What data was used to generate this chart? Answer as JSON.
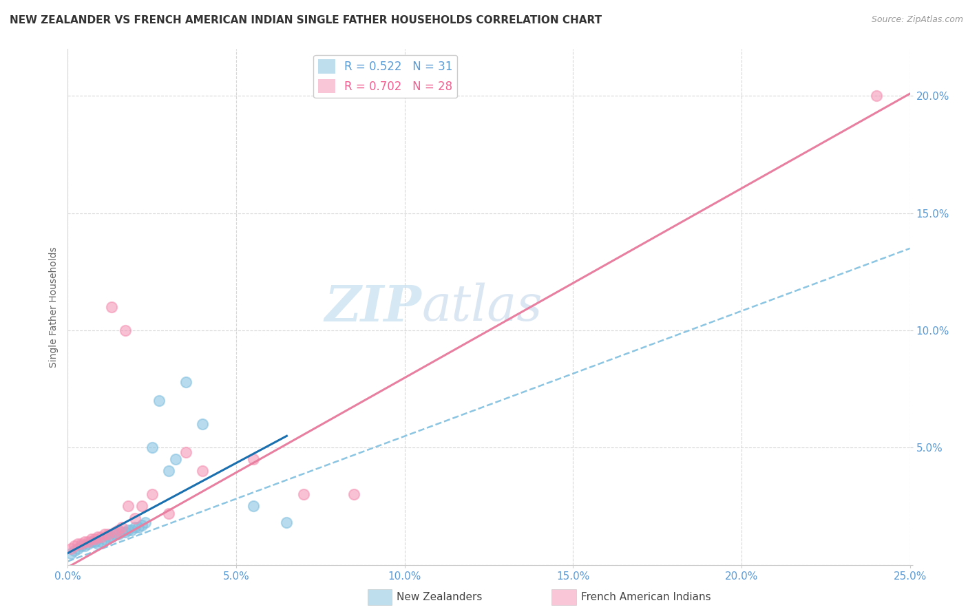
{
  "title": "NEW ZEALANDER VS FRENCH AMERICAN INDIAN SINGLE FATHER HOUSEHOLDS CORRELATION CHART",
  "source": "Source: ZipAtlas.com",
  "ylabel": "Single Father Households",
  "xlim": [
    0.0,
    0.25
  ],
  "ylim": [
    0.0,
    0.22
  ],
  "xticks": [
    0.0,
    0.05,
    0.1,
    0.15,
    0.2,
    0.25
  ],
  "xtick_labels": [
    "0.0%",
    "5.0%",
    "10.0%",
    "15.0%",
    "20.0%",
    "25.0%"
  ],
  "yticks": [
    0.0,
    0.05,
    0.1,
    0.15,
    0.2
  ],
  "ytick_labels": [
    "",
    "5.0%",
    "10.0%",
    "15.0%",
    "20.0%"
  ],
  "nz_color": "#7fbfdf",
  "fai_color": "#f48fb1",
  "nz_line_color": "#7fbfdf",
  "fai_line_color": "#e87ea0",
  "nz_solid_color": "#1a6faf",
  "watermark_zip": "ZIP",
  "watermark_atlas": "atlas",
  "nz_scatter_x": [
    0.001,
    0.002,
    0.003,
    0.004,
    0.005,
    0.006,
    0.007,
    0.008,
    0.009,
    0.01,
    0.011,
    0.012,
    0.013,
    0.014,
    0.015,
    0.016,
    0.017,
    0.018,
    0.019,
    0.02,
    0.021,
    0.022,
    0.023,
    0.025,
    0.027,
    0.03,
    0.032,
    0.035,
    0.04,
    0.055,
    0.065
  ],
  "nz_scatter_y": [
    0.005,
    0.006,
    0.007,
    0.008,
    0.008,
    0.009,
    0.01,
    0.01,
    0.009,
    0.01,
    0.011,
    0.012,
    0.012,
    0.013,
    0.013,
    0.014,
    0.014,
    0.015,
    0.015,
    0.016,
    0.016,
    0.017,
    0.018,
    0.05,
    0.07,
    0.04,
    0.045,
    0.078,
    0.06,
    0.025,
    0.018
  ],
  "fai_scatter_x": [
    0.001,
    0.002,
    0.003,
    0.004,
    0.005,
    0.006,
    0.007,
    0.008,
    0.009,
    0.01,
    0.011,
    0.012,
    0.013,
    0.014,
    0.015,
    0.016,
    0.017,
    0.018,
    0.02,
    0.022,
    0.025,
    0.03,
    0.035,
    0.04,
    0.055,
    0.07,
    0.085,
    0.24
  ],
  "fai_scatter_y": [
    0.007,
    0.008,
    0.009,
    0.009,
    0.01,
    0.01,
    0.011,
    0.011,
    0.012,
    0.012,
    0.013,
    0.013,
    0.11,
    0.014,
    0.015,
    0.016,
    0.1,
    0.025,
    0.02,
    0.025,
    0.03,
    0.022,
    0.048,
    0.04,
    0.045,
    0.03,
    0.03,
    0.2
  ],
  "nz_line_x": [
    0.0,
    0.25
  ],
  "nz_line_y": [
    0.0015,
    0.135
  ],
  "fai_line_x": [
    0.0,
    0.25
  ],
  "fai_line_y": [
    -0.001,
    0.201
  ],
  "nz_solid_line_x": [
    0.0,
    0.065
  ],
  "nz_solid_line_y": [
    0.005,
    0.055
  ],
  "background_color": "#ffffff",
  "grid_color": "#d8d8d8",
  "title_fontsize": 11,
  "label_fontsize": 10,
  "tick_fontsize": 11,
  "legend_label_nz": "R = 0.522   N = 31",
  "legend_label_fai": "R = 0.702   N = 28",
  "legend_color_nz": "#5b9bd5",
  "legend_color_fai": "#f06090"
}
